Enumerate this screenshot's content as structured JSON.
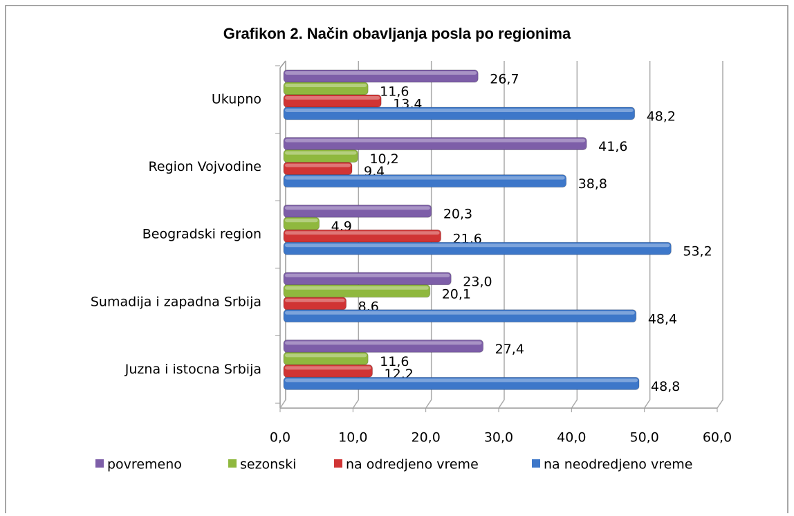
{
  "chart_data": {
    "type": "hbar",
    "title": "Grafikon 2. Način obavljanja posla po regionima",
    "categories": [
      "Ukupno",
      "Region Vojvodine",
      "Beogradski region",
      "Sumadija i zapadna Srbija",
      "Juzna i istocna Srbija"
    ],
    "series": [
      {
        "name": "povremeno",
        "color": "#7d5ea8",
        "values": [
          26.7,
          41.6,
          20.3,
          23.0,
          27.4
        ],
        "value_labels": [
          "26,7",
          "41,6",
          "20,3",
          "23,0",
          "27,4"
        ]
      },
      {
        "name": "sezonski",
        "color": "#8fb83e",
        "values": [
          11.6,
          10.2,
          4.9,
          20.1,
          11.6
        ],
        "value_labels": [
          "11,6",
          "10,2",
          "4,9",
          "20,1",
          "11,6"
        ]
      },
      {
        "name": "na odredjeno vreme",
        "color": "#d03434",
        "values": [
          13.4,
          9.4,
          21.6,
          8.6,
          12.2
        ],
        "value_labels": [
          "13,4",
          "9,4",
          "21,6",
          "8,6",
          "12,2"
        ]
      },
      {
        "name": "na neodredjeno vreme",
        "color": "#3d77c9",
        "values": [
          48.2,
          38.8,
          53.2,
          48.4,
          48.8
        ],
        "value_labels": [
          "48,2",
          "38,8",
          "53,2",
          "48,4",
          "48,8"
        ]
      }
    ],
    "xlim": [
      0,
      60
    ],
    "xticks": [
      {
        "value": 0,
        "label": "0,0"
      },
      {
        "value": 10,
        "label": "10,0"
      },
      {
        "value": 20,
        "label": "20,0"
      },
      {
        "value": 30,
        "label": "30,0"
      },
      {
        "value": 40,
        "label": "40,0"
      },
      {
        "value": 50,
        "label": "50,0"
      },
      {
        "value": 60,
        "label": "60,0"
      }
    ],
    "grid": true,
    "legend": "bottom"
  }
}
